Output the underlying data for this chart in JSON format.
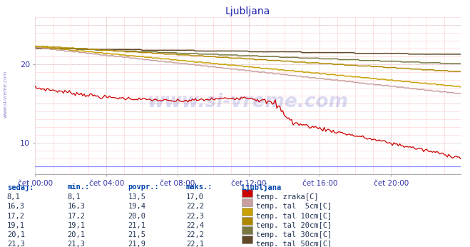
{
  "title": "Ljubljana",
  "title_color": "#2222aa",
  "bg_color": "#ffffff",
  "xlim": [
    0,
    287
  ],
  "ylim": [
    6,
    26
  ],
  "yticks": [
    10,
    20
  ],
  "xtick_labels": [
    "čet 00:00",
    "čet 04:00",
    "čet 08:00",
    "čet 12:00",
    "čet 16:00",
    "čet 20:00"
  ],
  "xtick_positions": [
    0,
    48,
    96,
    144,
    192,
    240
  ],
  "watermark": "www.si-vreme.com",
  "watermark_color": "#3333bb",
  "watermark_alpha": 0.18,
  "line_colors": {
    "air": "#cc0000",
    "s5": "#c8a0a0",
    "s10": "#c8a000",
    "s20": "#b08800",
    "s30": "#787840",
    "s50": "#604828",
    "bottom": "#8888ff"
  },
  "legend_data": [
    {
      "sedaj": "8,1",
      "min": "8,1",
      "povpr": "13,5",
      "maks": "17,0",
      "label": "temp. zraka[C]",
      "color": "#cc0000"
    },
    {
      "sedaj": "16,3",
      "min": "16,3",
      "povpr": "19,4",
      "maks": "22,2",
      "label": "temp. tal  5cm[C]",
      "color": "#c8a0a0"
    },
    {
      "sedaj": "17,2",
      "min": "17,2",
      "povpr": "20,0",
      "maks": "22,3",
      "label": "temp. tal 10cm[C]",
      "color": "#c8a000"
    },
    {
      "sedaj": "19,1",
      "min": "19,1",
      "povpr": "21,1",
      "maks": "22,4",
      "label": "temp. tal 20cm[C]",
      "color": "#b08800"
    },
    {
      "sedaj": "20,1",
      "min": "20,1",
      "povpr": "21,5",
      "maks": "22,2",
      "label": "temp. tal 30cm[C]",
      "color": "#787840"
    },
    {
      "sedaj": "21,3",
      "min": "21,3",
      "povpr": "21,9",
      "maks": "22,1",
      "label": "temp. tal 50cm[C]",
      "color": "#604828"
    }
  ],
  "legend_headers": [
    "sedaj:",
    "min.:",
    "povpr.:",
    "maks.:",
    "Ljubljana"
  ],
  "sidebar_text": "www.si-vreme.com",
  "sidebar_color": "#4444aa"
}
